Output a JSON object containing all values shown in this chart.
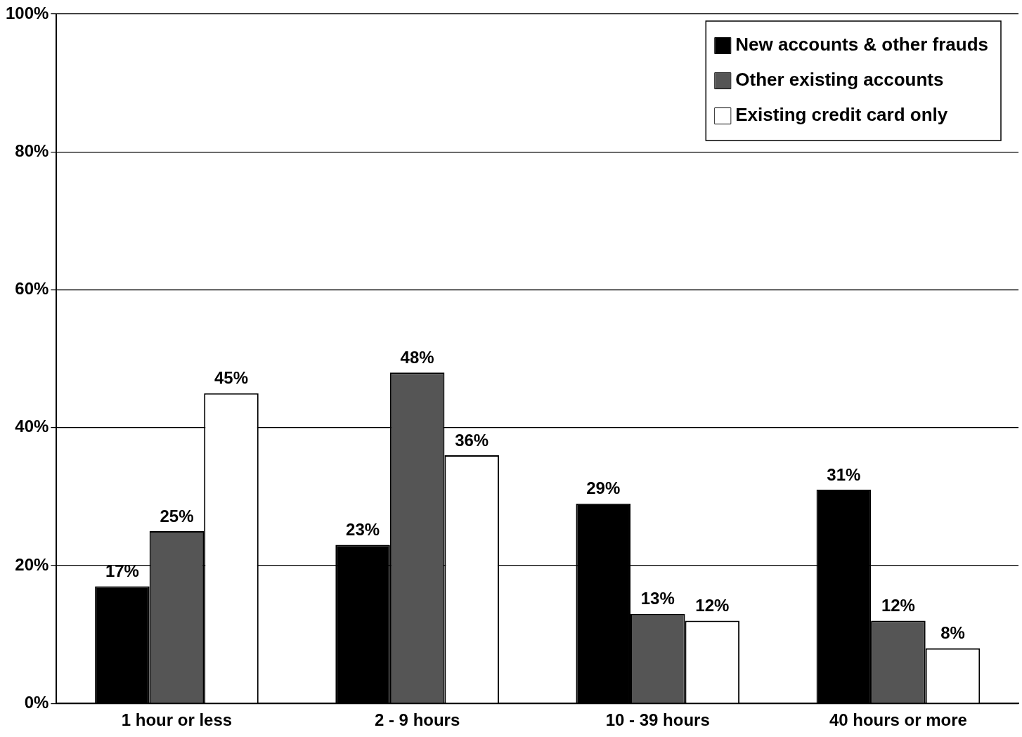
{
  "chart_data": {
    "type": "bar",
    "categories": [
      "1 hour or less",
      "2 - 9 hours",
      "10 - 39 hours",
      "40 hours or more"
    ],
    "series": [
      {
        "name": "New accounts & other frauds",
        "color": "#000000",
        "values": [
          17,
          23,
          29,
          31
        ],
        "value_labels": [
          "17%",
          "23%",
          "29%",
          "31%"
        ]
      },
      {
        "name": "Other existing accounts",
        "color": "#555555",
        "values": [
          25,
          48,
          13,
          12
        ],
        "value_labels": [
          "25%",
          "48%",
          "13%",
          "12%"
        ]
      },
      {
        "name": "Existing credit card only",
        "color": "#ffffff",
        "values": [
          45,
          36,
          12,
          8
        ],
        "value_labels": [
          "45%",
          "36%",
          "12%",
          "8%"
        ]
      }
    ],
    "ylim": [
      0,
      100
    ],
    "yticks": [
      {
        "value": 0,
        "label": "0%"
      },
      {
        "value": 20,
        "label": "20%"
      },
      {
        "value": 40,
        "label": "40%"
      },
      {
        "value": 60,
        "label": "60%"
      },
      {
        "value": 80,
        "label": "80%"
      },
      {
        "value": 100,
        "label": "100%"
      }
    ],
    "grid": "y",
    "legend": "top right"
  }
}
